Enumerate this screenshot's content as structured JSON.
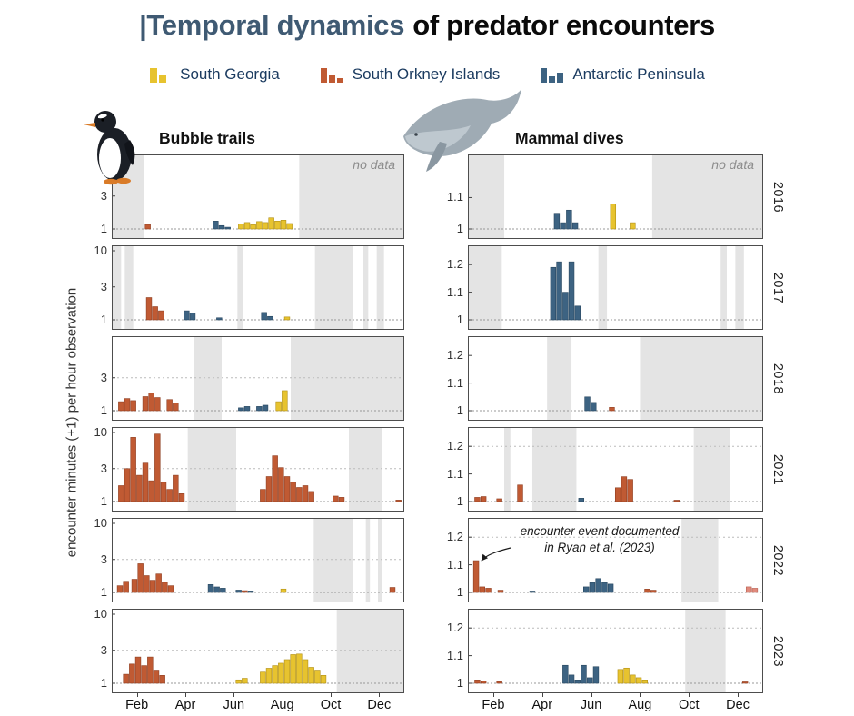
{
  "title": {
    "highlight": "|Temporal dynamics",
    "rest": "of predator encounters"
  },
  "title_colors": {
    "highlight": "#3F5A73",
    "rest": "#0b0b0b"
  },
  "legend": {
    "items": [
      {
        "label": "South Georgia",
        "site": "SG"
      },
      {
        "label": "South Orkney Islands",
        "site": "SOI"
      },
      {
        "label": "Antarctic Peninsula",
        "site": "AP"
      }
    ],
    "text_color": "#1A3A5F"
  },
  "columns": {
    "bubble": {
      "header": "Bubble trails"
    },
    "mammal": {
      "header": "Mammal dives"
    }
  },
  "axes": {
    "y_label": "encounter minutes (+1) per hour observation",
    "x_ticks": [
      "Feb",
      "Apr",
      "Jun",
      "Aug",
      "Oct",
      "Dec"
    ],
    "x_tick_months": [
      1,
      3,
      5,
      7,
      9,
      11
    ]
  },
  "years": [
    "2016",
    "2017",
    "2018",
    "2021",
    "2022",
    "2023"
  ],
  "no_data_label": "no data",
  "annotation": {
    "line1": "encounter event documented",
    "line2": "in Ryan et al. (2023)"
  },
  "colors_by_site": {
    "SG": "#E7C32F",
    "SOI": "#C05A33",
    "AP": "#3D6382",
    "SOI_LIGHT": "#E08A7C"
  },
  "stroke_by_site": {
    "SG": "#B08E13",
    "SOI": "#8E3D20",
    "AP": "#27465F",
    "SOI_LIGHT": "#B86254"
  },
  "colors": {
    "no_data": "#E4E4E4",
    "baseline": "#999999",
    "grid": "#bbbbbb",
    "panel_border": "#4d4d4d"
  },
  "chart_data": {
    "type": "bar",
    "x_range_months": [
      0,
      12
    ],
    "x_tick_labels": [
      "Feb",
      "Apr",
      "Jun",
      "Aug",
      "Oct",
      "Dec"
    ],
    "value_unit": "encounter minutes (+1) per hour observation",
    "panels": [
      {
        "col": "bubble",
        "row": 0,
        "year": "2016",
        "scale": "log",
        "ylim": [
          1,
          10
        ],
        "yticks": [
          3,
          1
        ],
        "grid": [],
        "no_data_label": true,
        "no_data": [
          [
            0,
            1.3
          ],
          [
            7.7,
            12
          ]
        ],
        "bars": [
          [
            1.45,
            1.16,
            "SOI"
          ],
          [
            4.25,
            1.3,
            "AP"
          ],
          [
            4.5,
            1.12,
            "AP"
          ],
          [
            4.75,
            1.06,
            "AP"
          ],
          [
            5.3,
            1.18,
            "SG"
          ],
          [
            5.55,
            1.24,
            "SG"
          ],
          [
            5.8,
            1.15,
            "SG"
          ],
          [
            6.05,
            1.28,
            "SG"
          ],
          [
            6.3,
            1.24,
            "SG"
          ],
          [
            6.55,
            1.45,
            "SG"
          ],
          [
            6.8,
            1.3,
            "SG"
          ],
          [
            7.05,
            1.34,
            "SG"
          ],
          [
            7.3,
            1.2,
            "SG"
          ]
        ]
      },
      {
        "col": "bubble",
        "row": 1,
        "year": "2017",
        "scale": "log",
        "ylim": [
          1,
          10
        ],
        "yticks": [
          10,
          3,
          1
        ],
        "grid": [],
        "no_data_label": false,
        "no_data": [
          [
            0,
            0.35
          ],
          [
            0.5,
            0.85
          ],
          [
            5.15,
            5.4
          ],
          [
            8.35,
            9.9
          ],
          [
            10.35,
            10.55
          ],
          [
            10.9,
            11.2
          ]
        ],
        "bars": [
          [
            1.5,
            2.1,
            "SOI"
          ],
          [
            1.75,
            1.55,
            "SOI"
          ],
          [
            2.0,
            1.35,
            "SOI"
          ],
          [
            3.05,
            1.35,
            "AP"
          ],
          [
            3.3,
            1.25,
            "AP"
          ],
          [
            4.4,
            1.07,
            "AP"
          ],
          [
            6.25,
            1.28,
            "AP"
          ],
          [
            6.5,
            1.12,
            "AP"
          ],
          [
            7.2,
            1.1,
            "SG"
          ]
        ]
      },
      {
        "col": "bubble",
        "row": 2,
        "year": "2018",
        "scale": "log",
        "ylim": [
          1,
          10
        ],
        "yticks": [
          3,
          1
        ],
        "grid": [
          3
        ],
        "no_data_label": false,
        "no_data": [
          [
            3.35,
            4.5
          ],
          [
            7.35,
            12
          ]
        ],
        "bars": [
          [
            0.35,
            1.35,
            "SOI"
          ],
          [
            0.6,
            1.5,
            "SOI"
          ],
          [
            0.85,
            1.4,
            "SOI"
          ],
          [
            1.35,
            1.6,
            "SOI"
          ],
          [
            1.6,
            1.8,
            "SOI"
          ],
          [
            1.85,
            1.55,
            "SOI"
          ],
          [
            2.35,
            1.45,
            "SOI"
          ],
          [
            2.6,
            1.3,
            "SOI"
          ],
          [
            5.3,
            1.1,
            "AP"
          ],
          [
            5.55,
            1.15,
            "AP"
          ],
          [
            6.05,
            1.15,
            "AP"
          ],
          [
            6.3,
            1.2,
            "AP"
          ],
          [
            6.85,
            1.35,
            "SG"
          ],
          [
            7.1,
            1.95,
            "SG"
          ]
        ]
      },
      {
        "col": "bubble",
        "row": 3,
        "year": "2021",
        "scale": "log",
        "ylim": [
          1,
          10
        ],
        "yticks": [
          10,
          3,
          1
        ],
        "grid": [
          3
        ],
        "no_data_label": false,
        "no_data": [
          [
            3.1,
            5.1
          ],
          [
            9.75,
            11.1
          ]
        ],
        "bars": [
          [
            0.35,
            1.7,
            "SOI"
          ],
          [
            0.6,
            3.0,
            "SOI"
          ],
          [
            0.85,
            8.5,
            "SOI"
          ],
          [
            1.1,
            2.4,
            "SOI"
          ],
          [
            1.35,
            3.6,
            "SOI"
          ],
          [
            1.6,
            2.0,
            "SOI"
          ],
          [
            1.85,
            9.5,
            "SOI"
          ],
          [
            2.1,
            1.9,
            "SOI"
          ],
          [
            2.35,
            1.5,
            "SOI"
          ],
          [
            2.6,
            2.4,
            "SOI"
          ],
          [
            2.85,
            1.3,
            "SOI"
          ],
          [
            6.2,
            1.5,
            "SOI"
          ],
          [
            6.45,
            2.3,
            "SOI"
          ],
          [
            6.7,
            4.6,
            "SOI"
          ],
          [
            6.95,
            3.1,
            "SOI"
          ],
          [
            7.2,
            2.3,
            "SOI"
          ],
          [
            7.45,
            1.9,
            "SOI"
          ],
          [
            7.7,
            1.6,
            "SOI"
          ],
          [
            7.95,
            1.7,
            "SOI"
          ],
          [
            8.2,
            1.4,
            "SOI"
          ],
          [
            9.2,
            1.2,
            "SOI"
          ],
          [
            9.45,
            1.15,
            "SOI"
          ],
          [
            11.8,
            1.05,
            "SOI"
          ]
        ]
      },
      {
        "col": "bubble",
        "row": 4,
        "year": "2022",
        "scale": "log",
        "ylim": [
          1,
          10
        ],
        "yticks": [
          10,
          3,
          1
        ],
        "grid": [
          3
        ],
        "no_data_label": false,
        "no_data": [
          [
            8.3,
            9.9
          ],
          [
            10.45,
            10.62
          ],
          [
            10.95,
            11.12
          ]
        ],
        "bars": [
          [
            0.3,
            1.25,
            "SOI"
          ],
          [
            0.55,
            1.45,
            "SOI"
          ],
          [
            0.9,
            1.55,
            "SOI"
          ],
          [
            1.15,
            2.6,
            "SOI"
          ],
          [
            1.4,
            1.75,
            "SOI"
          ],
          [
            1.65,
            1.5,
            "SOI"
          ],
          [
            1.9,
            1.85,
            "SOI"
          ],
          [
            2.15,
            1.4,
            "SOI"
          ],
          [
            2.4,
            1.25,
            "SOI"
          ],
          [
            4.05,
            1.3,
            "AP"
          ],
          [
            4.3,
            1.2,
            "AP"
          ],
          [
            4.55,
            1.15,
            "AP"
          ],
          [
            5.2,
            1.08,
            "AP"
          ],
          [
            5.45,
            1.06,
            "SOI"
          ],
          [
            5.7,
            1.05,
            "AP"
          ],
          [
            7.05,
            1.12,
            "SG"
          ],
          [
            11.55,
            1.18,
            "SOI"
          ]
        ]
      },
      {
        "col": "bubble",
        "row": 5,
        "year": "2023",
        "scale": "log",
        "ylim": [
          1,
          10
        ],
        "yticks": [
          10,
          3,
          1
        ],
        "grid": [
          3
        ],
        "no_data_label": false,
        "no_data": [
          [
            9.25,
            12
          ]
        ],
        "bars": [
          [
            0.55,
            1.35,
            "SOI"
          ],
          [
            0.8,
            1.9,
            "SOI"
          ],
          [
            1.05,
            2.4,
            "SOI"
          ],
          [
            1.3,
            1.8,
            "SOI"
          ],
          [
            1.55,
            2.4,
            "SOI"
          ],
          [
            1.8,
            1.55,
            "SOI"
          ],
          [
            2.05,
            1.3,
            "SOI"
          ],
          [
            5.2,
            1.12,
            "SG"
          ],
          [
            5.45,
            1.18,
            "SG"
          ],
          [
            6.2,
            1.45,
            "SG"
          ],
          [
            6.45,
            1.65,
            "SG"
          ],
          [
            6.7,
            1.8,
            "SG"
          ],
          [
            6.95,
            1.95,
            "SG"
          ],
          [
            7.2,
            2.2,
            "SG"
          ],
          [
            7.45,
            2.6,
            "SG"
          ],
          [
            7.7,
            2.65,
            "SG"
          ],
          [
            7.95,
            2.2,
            "SG"
          ],
          [
            8.2,
            1.7,
            "SG"
          ],
          [
            8.45,
            1.55,
            "SG"
          ],
          [
            8.7,
            1.3,
            "SG"
          ]
        ]
      },
      {
        "col": "mammal",
        "row": 0,
        "year": "2016",
        "scale": "linear",
        "ylim": [
          1,
          1.22
        ],
        "yticks": [
          1.1,
          1
        ],
        "grid": [],
        "no_data_label": true,
        "no_data": [
          [
            0,
            1.45
          ],
          [
            7.5,
            12
          ]
        ],
        "bars": [
          [
            3.6,
            1.05,
            "AP"
          ],
          [
            3.85,
            1.02,
            "AP"
          ],
          [
            4.1,
            1.06,
            "AP"
          ],
          [
            4.35,
            1.02,
            "AP"
          ],
          [
            5.9,
            1.08,
            "SG"
          ],
          [
            6.7,
            1.02,
            "SG"
          ]
        ]
      },
      {
        "col": "mammal",
        "row": 1,
        "year": "2017",
        "scale": "linear",
        "ylim": [
          1,
          1.25
        ],
        "yticks": [
          1.2,
          1.1,
          1
        ],
        "grid": [],
        "no_data_label": false,
        "no_data": [
          [
            0,
            1.35
          ],
          [
            5.3,
            5.65
          ],
          [
            10.3,
            10.55
          ],
          [
            10.9,
            11.25
          ]
        ],
        "bars": [
          [
            3.45,
            1.19,
            "AP"
          ],
          [
            3.7,
            1.21,
            "AP"
          ],
          [
            3.95,
            1.1,
            "AP"
          ],
          [
            4.2,
            1.21,
            "AP"
          ],
          [
            4.45,
            1.05,
            "AP"
          ]
        ]
      },
      {
        "col": "mammal",
        "row": 2,
        "year": "2018",
        "scale": "linear",
        "ylim": [
          1,
          1.25
        ],
        "yticks": [
          1.2,
          1.1,
          1
        ],
        "grid": [],
        "no_data_label": false,
        "no_data": [
          [
            3.2,
            4.2
          ],
          [
            7.0,
            12
          ]
        ],
        "bars": [
          [
            4.85,
            1.05,
            "AP"
          ],
          [
            5.1,
            1.03,
            "AP"
          ],
          [
            5.85,
            1.012,
            "SOI"
          ]
        ]
      },
      {
        "col": "mammal",
        "row": 3,
        "year": "2021",
        "scale": "linear",
        "ylim": [
          1,
          1.25
        ],
        "yticks": [
          1.2,
          1.1,
          1
        ],
        "grid": [
          1.2
        ],
        "no_data_label": false,
        "no_data": [
          [
            1.45,
            1.7
          ],
          [
            2.6,
            4.4
          ],
          [
            9.2,
            10.7
          ]
        ],
        "bars": [
          [
            0.35,
            1.015,
            "SOI"
          ],
          [
            0.6,
            1.018,
            "SOI"
          ],
          [
            1.25,
            1.01,
            "SOI"
          ],
          [
            2.1,
            1.06,
            "SOI"
          ],
          [
            4.6,
            1.012,
            "AP"
          ],
          [
            6.1,
            1.05,
            "SOI"
          ],
          [
            6.35,
            1.09,
            "SOI"
          ],
          [
            6.6,
            1.08,
            "SOI"
          ],
          [
            8.5,
            1.005,
            "SOI"
          ]
        ]
      },
      {
        "col": "mammal",
        "row": 4,
        "year": "2022",
        "scale": "linear",
        "ylim": [
          1,
          1.25
        ],
        "yticks": [
          1.2,
          1.1,
          1
        ],
        "grid": [
          1.2
        ],
        "no_data_label": false,
        "note": true,
        "no_data": [
          [
            8.7,
            10.2
          ]
        ],
        "bars": [
          [
            0.3,
            1.115,
            "SOI"
          ],
          [
            0.55,
            1.02,
            "SOI"
          ],
          [
            0.8,
            1.015,
            "SOI"
          ],
          [
            1.3,
            1.008,
            "SOI"
          ],
          [
            2.6,
            1.005,
            "AP"
          ],
          [
            4.8,
            1.02,
            "AP"
          ],
          [
            5.05,
            1.035,
            "AP"
          ],
          [
            5.3,
            1.05,
            "AP"
          ],
          [
            5.55,
            1.035,
            "AP"
          ],
          [
            5.8,
            1.03,
            "AP"
          ],
          [
            7.3,
            1.012,
            "SOI"
          ],
          [
            7.55,
            1.008,
            "SOI"
          ],
          [
            11.45,
            1.02,
            "SOI_LIGHT"
          ],
          [
            11.7,
            1.015,
            "SOI_LIGHT"
          ]
        ]
      },
      {
        "col": "mammal",
        "row": 5,
        "year": "2023",
        "scale": "linear",
        "ylim": [
          1,
          1.25
        ],
        "yticks": [
          1.2,
          1.1,
          1
        ],
        "grid": [
          1.2
        ],
        "no_data_label": false,
        "no_data": [
          [
            8.85,
            10.5
          ]
        ],
        "bars": [
          [
            0.35,
            1.012,
            "SOI"
          ],
          [
            0.6,
            1.008,
            "SOI"
          ],
          [
            1.25,
            1.006,
            "SOI"
          ],
          [
            3.95,
            1.065,
            "AP"
          ],
          [
            4.2,
            1.03,
            "AP"
          ],
          [
            4.45,
            1.012,
            "AP"
          ],
          [
            4.7,
            1.065,
            "AP"
          ],
          [
            4.95,
            1.02,
            "AP"
          ],
          [
            5.2,
            1.06,
            "AP"
          ],
          [
            6.2,
            1.05,
            "SG"
          ],
          [
            6.45,
            1.055,
            "SG"
          ],
          [
            6.7,
            1.03,
            "SG"
          ],
          [
            6.95,
            1.02,
            "SG"
          ],
          [
            7.2,
            1.012,
            "SG"
          ],
          [
            11.3,
            1.005,
            "SOI"
          ]
        ]
      }
    ]
  }
}
